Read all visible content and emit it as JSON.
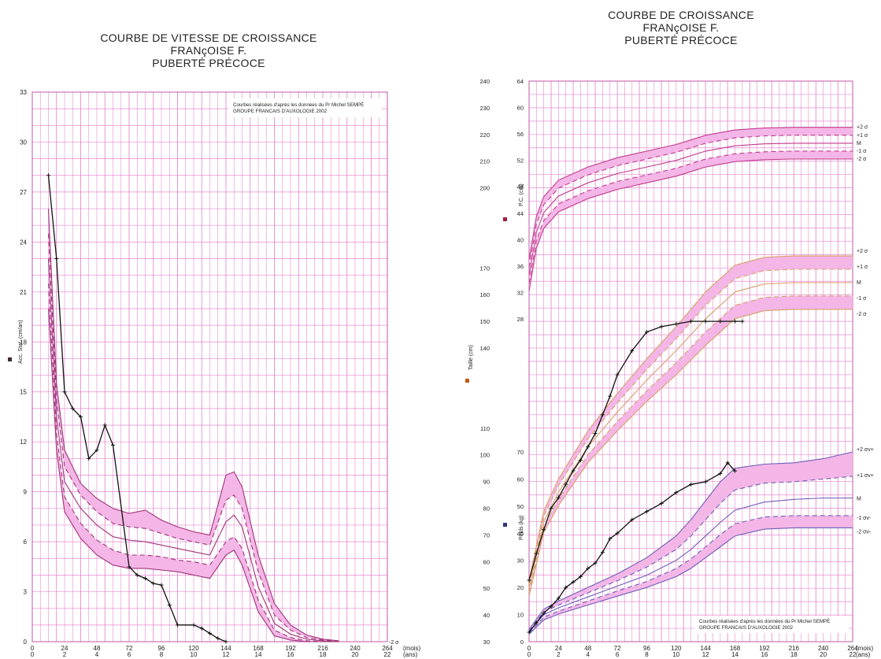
{
  "left_title": [
    "COURBE DE VITESSE DE CROISSANCE",
    "FRANçOISE F.",
    "PUBERTÉ PRÉCOCE"
  ],
  "right_title": [
    "COURBE DE CROISSANCE",
    "FRANçOISE F.",
    "PUBERTÉ PRÉCOCE"
  ],
  "colors": {
    "grid": "#e68ad0",
    "band": "#f3b6e6",
    "mean": "#a0337a",
    "weight_ref": "#6d5fb8",
    "patient": "#111111"
  },
  "chart_data": [
    {
      "type": "line",
      "title": "COURBE DE VITESSE DE CROISSANCE",
      "ylabel": "Acc. Stat. (cm/an)",
      "xlabel": "(mois) (ans)",
      "xlim": [
        0,
        264
      ],
      "ylim": [
        0,
        33
      ],
      "x_ticks": [
        0,
        24,
        48,
        72,
        96,
        120,
        144,
        168,
        192,
        216,
        240,
        264
      ],
      "x_tick_labels_mois": [
        "0",
        "24",
        "48",
        "72",
        "96",
        "120",
        "144",
        "168",
        "192",
        "216",
        "240",
        "264"
      ],
      "x_tick_labels_ans": [
        "0",
        "2",
        "4",
        "6",
        "8",
        "10",
        "12",
        "14",
        "16",
        "18",
        "20",
        "22"
      ],
      "y_ticks": [
        0,
        3,
        6,
        9,
        12,
        15,
        18,
        21,
        24,
        27,
        30,
        33
      ],
      "unit_mois": "(mois)",
      "unit_ans": "(ans)",
      "source_note": [
        "Courbes réalisées d'après les données du Pr Michel SEMPÉ",
        "GROUPE FRANCAIS D'AUXOLOGIE 2002"
      ],
      "side_label": "-2 σ",
      "reference": {
        "x": [
          12,
          18,
          24,
          36,
          48,
          60,
          72,
          84,
          96,
          108,
          120,
          132,
          144,
          150,
          156,
          168,
          180,
          192,
          204,
          216,
          228
        ],
        "plus2": [
          26,
          15.5,
          11.5,
          9.5,
          8.6,
          8.0,
          7.7,
          7.9,
          7.3,
          6.9,
          6.6,
          6.4,
          10.0,
          10.2,
          9.3,
          5.2,
          2.3,
          1.0,
          0.4,
          0.15,
          0.05
        ],
        "plus1": [
          24.5,
          14.5,
          10.5,
          8.8,
          7.8,
          7.1,
          6.9,
          6.8,
          6.5,
          6.2,
          6.0,
          5.8,
          8.5,
          8.8,
          8.0,
          4.2,
          1.6,
          0.7,
          0.25,
          0.1,
          0.03
        ],
        "mean": [
          23,
          13.5,
          9.6,
          8.0,
          7.0,
          6.3,
          6.1,
          6.0,
          5.8,
          5.6,
          5.4,
          5.2,
          7.2,
          7.6,
          6.9,
          3.3,
          1.1,
          0.45,
          0.15,
          0.05,
          0.0
        ],
        "minus1": [
          21.5,
          12.5,
          8.7,
          7.1,
          6.1,
          5.5,
          5.2,
          5.2,
          5.1,
          4.9,
          4.8,
          4.6,
          6.0,
          6.3,
          5.6,
          2.5,
          0.7,
          0.25,
          0.05,
          0.0,
          0.0
        ],
        "minus2": [
          20,
          11.5,
          7.8,
          6.2,
          5.2,
          4.6,
          4.4,
          4.4,
          4.3,
          4.2,
          4.0,
          3.8,
          5.2,
          5.5,
          4.6,
          1.8,
          0.35,
          0.1,
          0.0,
          0.0,
          0.0
        ]
      },
      "patient": {
        "x": [
          12,
          18,
          24,
          30,
          36,
          42,
          48,
          54,
          60,
          72,
          78,
          84,
          90,
          96,
          102,
          108,
          120,
          126,
          132,
          138,
          144
        ],
        "y": [
          28,
          23,
          15,
          14,
          13.5,
          11,
          11.5,
          13,
          11.8,
          4.5,
          4.0,
          3.8,
          3.5,
          3.4,
          2.2,
          1.0,
          1.0,
          0.8,
          0.5,
          0.2,
          0.0
        ]
      }
    },
    {
      "type": "line",
      "title": "COURBE DE CROISSANCE",
      "xlabel": "(mois) (ans)",
      "xlim": [
        0,
        264
      ],
      "x_ticks": [
        0,
        24,
        48,
        72,
        96,
        120,
        144,
        168,
        192,
        216,
        240,
        264
      ],
      "x_tick_labels_mois": [
        "0",
        "24",
        "48",
        "72",
        "96",
        "120",
        "144",
        "168",
        "192",
        "216",
        "240",
        "264"
      ],
      "x_tick_labels_ans": [
        "0",
        "2",
        "4",
        "6",
        "8",
        "10",
        "12",
        "14",
        "16",
        "18",
        "20",
        "22"
      ],
      "unit_mois": "(mois)",
      "unit_ans": "(ans)",
      "axis_taille_ticks": [
        30,
        40,
        50,
        60,
        70,
        80,
        90,
        100,
        110,
        120,
        130,
        140,
        150,
        160,
        170,
        180,
        190,
        200,
        210,
        220,
        230,
        240
      ],
      "axis_taille_labels": [
        "30",
        "40",
        "50",
        "60",
        "70",
        "80",
        "90",
        "100",
        "110",
        "",
        "",
        "140",
        "150",
        "160",
        "170",
        "",
        "",
        "200",
        "210",
        "220",
        "230",
        "240"
      ],
      "axis_pc_ticks": [
        28,
        32,
        36,
        40,
        44,
        48,
        52,
        56,
        60,
        64
      ],
      "axis_poids_ticks": [
        0,
        10,
        20,
        30,
        40,
        50,
        60,
        70
      ],
      "label_pc": "P.C. (cm)",
      "label_taille": "Taille (cm)",
      "label_poids": "Poids (kg)",
      "source_note": [
        "Courbes réalisées d'après les données du Pr Michel SEMPÉ",
        "GROUPE FRANCAIS D'AUXOLOGIE 2002"
      ],
      "sigma_labels_pc": [
        "+2 σ",
        "+1 σ",
        "M",
        "-1 σ",
        "-2 σ"
      ],
      "sigma_labels_taille": [
        "+2 σ",
        "+1 σ",
        "M",
        "-1 σ",
        "-2 σ"
      ],
      "sigma_labels_poids": [
        "+2 σv+",
        "+1 σv+",
        "M",
        "-1 σv-",
        "-2 σv-"
      ],
      "pc_reference": {
        "x": [
          0,
          6,
          12,
          24,
          48,
          72,
          96,
          120,
          144,
          168,
          192,
          216,
          240,
          264
        ],
        "plus2": [
          37,
          43.5,
          46.5,
          49,
          51,
          52.4,
          53.4,
          54.4,
          55.8,
          56.6,
          56.9,
          57.0,
          57.0,
          57.0
        ],
        "plus1": [
          35.8,
          42.3,
          45.3,
          47.8,
          49.8,
          51.2,
          52.2,
          53.2,
          54.6,
          55.4,
          55.7,
          55.8,
          55.8,
          55.8
        ],
        "mean": [
          34.6,
          41.1,
          44.1,
          46.6,
          48.6,
          50.0,
          51.0,
          52.0,
          53.4,
          54.2,
          54.5,
          54.6,
          54.6,
          54.6
        ],
        "minus1": [
          33.4,
          39.9,
          42.9,
          45.4,
          47.4,
          48.8,
          49.8,
          50.8,
          52.2,
          53.0,
          53.3,
          53.4,
          53.4,
          53.4
        ],
        "minus2": [
          32.2,
          38.7,
          41.7,
          44.2,
          46.2,
          47.6,
          48.6,
          49.6,
          51.0,
          51.8,
          52.1,
          52.2,
          52.2,
          52.2
        ]
      },
      "taille_reference": {
        "x": [
          0,
          12,
          24,
          48,
          72,
          96,
          120,
          144,
          168,
          192,
          216,
          240,
          264
        ],
        "plus2": [
          53,
          79,
          91,
          109,
          123,
          136,
          148,
          161,
          171,
          174,
          174.5,
          174.5,
          174.5
        ],
        "plus1": [
          51.5,
          77,
          88.5,
          106,
          119.5,
          132,
          143.5,
          156,
          166,
          169,
          169.5,
          169.5,
          169.5
        ],
        "mean": [
          50,
          75,
          86,
          103,
          116,
          128,
          139,
          151,
          161,
          164,
          164.5,
          164.5,
          164.5
        ],
        "minus1": [
          48.5,
          73,
          83.5,
          100,
          112.5,
          124,
          134.5,
          146,
          156,
          159,
          159.5,
          159.5,
          159.5
        ],
        "minus2": [
          47,
          71,
          81,
          97,
          109,
          120,
          130,
          141,
          151,
          154,
          154.5,
          154.5,
          154.5
        ]
      },
      "taille_patient": {
        "x": [
          0,
          6,
          12,
          18,
          24,
          30,
          36,
          42,
          48,
          54,
          60,
          66,
          72,
          84,
          96,
          108,
          120,
          132,
          144,
          156,
          168,
          174
        ],
        "y": [
          53,
          63,
          72,
          80,
          84,
          89,
          94,
          98,
          103,
          108,
          115,
          122,
          130,
          139,
          146,
          148,
          149,
          150,
          150,
          150,
          150,
          150
        ]
      },
      "poids_reference": {
        "x": [
          0,
          12,
          24,
          48,
          72,
          96,
          120,
          132,
          144,
          156,
          168,
          192,
          216,
          240,
          264
        ],
        "plus2": [
          4.5,
          12,
          15,
          20,
          25,
          31,
          39,
          45,
          52,
          59,
          64,
          65.5,
          66,
          67.5,
          70
        ],
        "plus1": [
          4.0,
          11,
          13.5,
          18,
          22.5,
          27.5,
          34,
          39,
          45,
          51,
          56,
          58.5,
          59,
          60,
          61
        ],
        "mean": [
          3.6,
          10,
          12.5,
          16.5,
          20.5,
          24.5,
          30,
          34,
          39,
          44,
          48.5,
          51.5,
          52.5,
          53,
          53
        ],
        "minus1": [
          3.2,
          9,
          11.3,
          15,
          18.7,
          22.2,
          27,
          30.5,
          35,
          39.5,
          43.5,
          46,
          46.5,
          46.5,
          46.5
        ],
        "minus2": [
          2.8,
          8,
          10.2,
          13.5,
          16.8,
          20,
          24,
          27,
          31,
          35,
          39,
          41.5,
          42,
          42,
          42
        ]
      },
      "poids_patient": {
        "x": [
          0,
          6,
          12,
          18,
          24,
          30,
          36,
          42,
          48,
          54,
          60,
          66,
          72,
          84,
          96,
          108,
          120,
          132,
          144,
          156,
          162,
          168
        ],
        "y": [
          3.5,
          7,
          10.5,
          13,
          16,
          20,
          22,
          24,
          27,
          29,
          33,
          38,
          40,
          45,
          48,
          51,
          55,
          58,
          59,
          62,
          66,
          63
        ]
      }
    }
  ]
}
